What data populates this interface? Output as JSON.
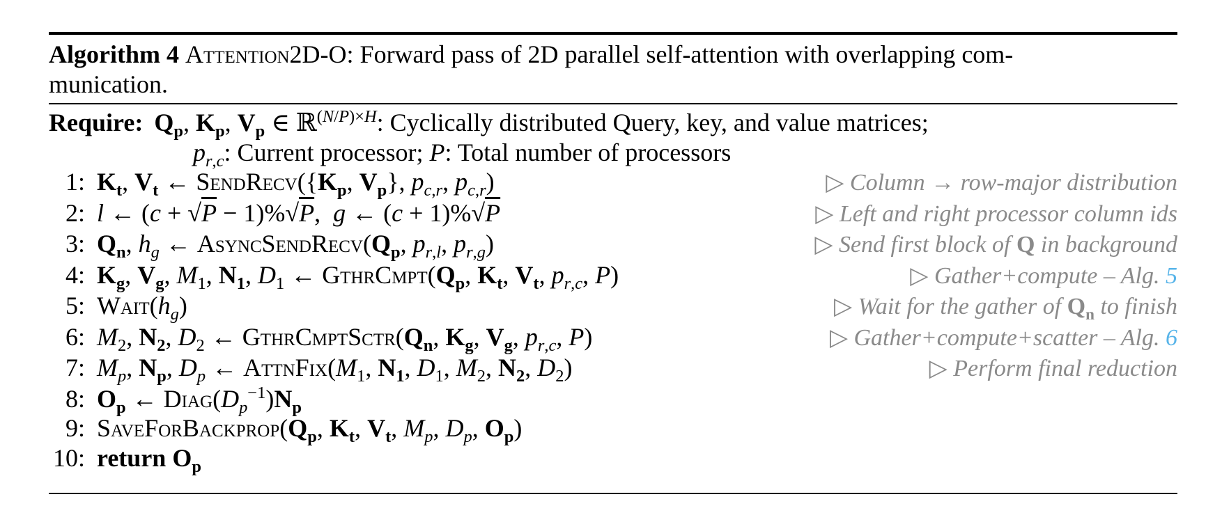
{
  "colors": {
    "text": "#000000",
    "comment_gray": "#8a8a8a",
    "link_blue": "#57b4e9",
    "background": "#ffffff"
  },
  "algorithm": {
    "label": "Algorithm 4",
    "caption_line1_html": "<b>Algorithm 4</b> <span class=\"sc\">Attention2D-O</span>: Forward pass of 2D parallel self-attention with overlapping com-",
    "caption_line2_html": "munication.",
    "require_label": "Require:",
    "require_line1_html": "<b>Q<sub>p</sub></b>, <b>K<sub>p</sub></b>, <b>V<sub>p</sub></b> &#8712; &#8477;<sup>(<i>N</i>/<i>P</i>)&#215;<i>H</i></sup>: Cyclically distributed Query, key, and value matrices;",
    "require_line2_html": "<i>p</i><sub><i>r</i>,<i>c</i></sub>: Current processor; <i>P</i>: Total number of processors",
    "lines": [
      {
        "num": "1:",
        "code_html": "<b>K<sub>t</sub></b>, <b>V<sub>t</sub></b> &#8592; <span class=\"sc\">SendRecv</span>({<b>K<sub>p</sub></b>, <b>V<sub>p</sub></b>}, <i>p</i><sub><i>c</i>,<i>r</i></sub>, <i>p</i><sub><i>c</i>,<i>r</i></sub>)",
        "comment_html": "&#9655; <i>Column &#8594; row-major distribution</i>"
      },
      {
        "num": "2:",
        "code_html": "<i>l</i> &#8592; (<i>c</i> + &#8730;<span class=\"rad\"><i>P</i></span> &#8722; 1)%&#8730;<span class=\"rad\"><i>P</i></span>,&#8194;<i>g</i> &#8592; (<i>c</i> + 1)%&#8730;<span class=\"rad\"><i>P</i></span>",
        "comment_html": "&#9655; <i>Left and right processor column ids</i>"
      },
      {
        "num": "3:",
        "code_html": "<b>Q<sub>n</sub></b>, <i>h<sub>g</sub></i> &#8592; <span class=\"sc\">AsyncSendRecv</span>(<b>Q<sub>p</sub></b>, <i>p</i><sub><i>r</i>,<i>l</i></sub>, <i>p</i><sub><i>r</i>,<i>g</i></sub>)",
        "comment_html": "&#9655; <i>Send first block of</i> <b>Q</b> <i>in background</i>"
      },
      {
        "num": "4:",
        "code_html": "<b>K<sub>g</sub></b>, <b>V<sub>g</sub></b>, <i>M</i><sub>1</sub>, <b>N<sub>1</sub></b>, <i>D</i><sub>1</sub> &#8592; <span class=\"sc\">GthrCmpt</span>(<b>Q<sub>p</sub></b>, <b>K<sub>t</sub></b>, <b>V<sub>t</sub></b>, <i>p</i><sub><i>r</i>,<i>c</i></sub>, <i>P</i>)",
        "comment_html": "&#9655; <i>Gather+compute &#8211; Alg.</i> <a class=\"alg-link\" data-name=\"alg-5-link\" data-interactable=\"true\">5</a>"
      },
      {
        "num": "5:",
        "code_html": "<span class=\"sc\">Wait</span>(<i>h<sub>g</sub></i>)",
        "comment_html": "&#9655; <i>Wait for the gather of</i> <b>Q<sub>n</sub></b> <i>to finish</i>"
      },
      {
        "num": "6:",
        "code_html": "<i>M</i><sub>2</sub>, <b>N<sub>2</sub></b>, <i>D</i><sub>2</sub> &#8592; <span class=\"sc\">GthrCmptSctr</span>(<b>Q<sub>n</sub></b>, <b>K<sub>g</sub></b>, <b>V<sub>g</sub></b>, <i>p</i><sub><i>r</i>,<i>c</i></sub>, <i>P</i>)",
        "comment_html": "&#9655; <i>Gather+compute+scatter &#8211; Alg.</i> <a class=\"alg-link\" data-name=\"alg-6-link\" data-interactable=\"true\">6</a>"
      },
      {
        "num": "7:",
        "code_html": "<i>M<sub>p</sub></i>, <b>N<sub>p</sub></b>, <i>D<sub>p</sub></i> &#8592; <span class=\"sc\">AttnFix</span>(<i>M</i><sub>1</sub>, <b>N<sub>1</sub></b>, <i>D</i><sub>1</sub>, <i>M</i><sub>2</sub>, <b>N<sub>2</sub></b>, <i>D</i><sub>2</sub>)",
        "comment_html": "&#9655; <i>Perform final reduction</i>"
      },
      {
        "num": "8:",
        "code_html": "<b>O<sub>p</sub></b> &#8592; <span class=\"sc\">Diag</span>(<i>D</i><sub><i>p</i></sub><sup>&#8722;1</sup>)<b>N<sub>p</sub></b>",
        "comment_html": ""
      },
      {
        "num": "9:",
        "code_html": "<span class=\"sc\">SaveForBackprop</span>(<b>Q<sub>p</sub></b>, <b>K<sub>t</sub></b>, <b>V<sub>t</sub></b>, <i>M<sub>p</sub></i>, <i>D<sub>p</sub></i>, <b>O<sub>p</sub></b>)",
        "comment_html": ""
      },
      {
        "num": "10:",
        "code_html": "<b>return</b> <b>O<sub>p</sub></b>",
        "comment_html": ""
      }
    ]
  }
}
